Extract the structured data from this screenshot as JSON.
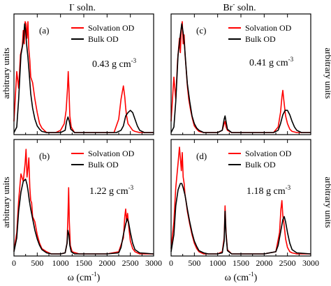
{
  "figure": {
    "col_titles": [
      {
        "main": "I",
        "sup": "-",
        "rest": " soln."
      },
      {
        "main": "Br",
        "sup": "-",
        "rest": " soln."
      }
    ],
    "ylabel": "arbitrary units",
    "xlabel": {
      "main": "ω (cm",
      "sup": "-1",
      "close": ")"
    }
  },
  "chart_data": [
    {
      "type": "line",
      "panel": "(a)",
      "annotation": {
        "value": "0.43 g cm",
        "sup": "-3"
      },
      "xlim": [
        0,
        3000
      ],
      "ylim": [
        0,
        1
      ],
      "xticks": [
        0,
        500,
        1000,
        1500,
        2000,
        2500,
        3000
      ],
      "series": [
        {
          "name": "Solvation OD",
          "color": "#ff0000",
          "x": [
            0,
            60,
            100,
            140,
            180,
            200,
            220,
            240,
            260,
            280,
            300,
            320,
            340,
            360,
            400,
            450,
            500,
            550,
            600,
            650,
            700,
            800,
            900,
            1000,
            1080,
            1120,
            1150,
            1165,
            1180,
            1200,
            1230,
            1300,
            1500,
            1800,
            2000,
            2150,
            2250,
            2300,
            2350,
            2380,
            2400,
            2420,
            2450,
            2500,
            2550,
            2600,
            2700,
            3000
          ],
          "y": [
            0.1,
            0.55,
            0.4,
            0.7,
            0.78,
            0.92,
            0.8,
            1.0,
            0.98,
            0.85,
            1.0,
            0.75,
            0.65,
            0.5,
            0.45,
            0.3,
            0.18,
            0.08,
            0.04,
            0.02,
            0.0,
            0.0,
            0.0,
            0.02,
            0.08,
            0.2,
            0.4,
            0.55,
            0.4,
            0.15,
            0.05,
            0.0,
            0.0,
            0.0,
            0.0,
            0.0,
            0.12,
            0.3,
            0.42,
            0.32,
            0.22,
            0.15,
            0.08,
            0.05,
            0.02,
            0.01,
            0.0,
            0.0
          ]
        },
        {
          "name": "Bulk OD",
          "color": "#000000",
          "x": [
            0,
            60,
            100,
            150,
            200,
            230,
            250,
            270,
            300,
            330,
            360,
            400,
            450,
            500,
            550,
            600,
            700,
            800,
            1000,
            1100,
            1130,
            1160,
            1190,
            1220,
            1300,
            1500,
            2000,
            2200,
            2300,
            2350,
            2400,
            2450,
            2500,
            2550,
            2600,
            2650,
            2700,
            2800,
            3000
          ],
          "y": [
            0.0,
            0.05,
            0.3,
            0.7,
            0.82,
            0.98,
            0.92,
            0.8,
            0.68,
            0.52,
            0.35,
            0.22,
            0.12,
            0.06,
            0.03,
            0.01,
            0.0,
            0.0,
            0.0,
            0.02,
            0.1,
            0.14,
            0.1,
            0.03,
            0.0,
            0.0,
            0.0,
            0.0,
            0.02,
            0.06,
            0.15,
            0.18,
            0.2,
            0.18,
            0.12,
            0.06,
            0.02,
            0.0,
            0.0
          ]
        }
      ]
    },
    {
      "type": "line",
      "panel": "(b)",
      "annotation": {
        "value": "1.22 g cm",
        "sup": "-3"
      },
      "xlim": [
        0,
        3000
      ],
      "ylim": [
        0,
        1
      ],
      "xticks": [
        0,
        500,
        1000,
        1500,
        2000,
        2500,
        3000
      ],
      "xticklabels": [
        "0",
        "500",
        "1000",
        "1500",
        "2000",
        "2500",
        "3000"
      ],
      "series": [
        {
          "name": "Solvation OD",
          "color": "#ff0000",
          "x": [
            0,
            60,
            100,
            150,
            200,
            240,
            260,
            280,
            300,
            320,
            340,
            360,
            380,
            400,
            450,
            500,
            550,
            600,
            700,
            800,
            1000,
            1100,
            1140,
            1160,
            1175,
            1190,
            1210,
            1250,
            1400,
            2000,
            2250,
            2350,
            2380,
            2400,
            2420,
            2440,
            2460,
            2480,
            2500,
            2550,
            2600,
            2700,
            3000
          ],
          "y": [
            0.03,
            0.2,
            0.5,
            0.75,
            0.68,
            0.85,
            0.98,
            0.72,
            0.8,
            0.9,
            0.62,
            0.5,
            0.48,
            0.35,
            0.3,
            0.18,
            0.1,
            0.05,
            0.02,
            0.0,
            0.0,
            0.01,
            0.1,
            0.35,
            0.62,
            0.3,
            0.08,
            0.02,
            0.0,
            0.0,
            0.02,
            0.15,
            0.35,
            0.42,
            0.3,
            0.38,
            0.28,
            0.2,
            0.12,
            0.05,
            0.02,
            0.0,
            0.0
          ]
        },
        {
          "name": "Bulk OD",
          "color": "#000000",
          "x": [
            0,
            60,
            100,
            150,
            200,
            250,
            280,
            300,
            330,
            360,
            400,
            450,
            500,
            550,
            600,
            700,
            800,
            1000,
            1100,
            1140,
            1160,
            1180,
            1200,
            1230,
            1300,
            2000,
            2250,
            2300,
            2350,
            2400,
            2430,
            2460,
            2500,
            2550,
            2600,
            2700,
            3000
          ],
          "y": [
            0.02,
            0.15,
            0.4,
            0.58,
            0.68,
            0.7,
            0.65,
            0.6,
            0.5,
            0.42,
            0.33,
            0.22,
            0.14,
            0.08,
            0.04,
            0.01,
            0.0,
            0.0,
            0.01,
            0.1,
            0.22,
            0.18,
            0.08,
            0.02,
            0.0,
            0.0,
            0.01,
            0.06,
            0.18,
            0.28,
            0.33,
            0.3,
            0.2,
            0.1,
            0.04,
            0.01,
            0.0
          ]
        }
      ]
    },
    {
      "type": "line",
      "panel": "(c)",
      "annotation": {
        "value": "0.41 g cm",
        "sup": "-3"
      },
      "xlim": [
        0,
        3000
      ],
      "ylim": [
        0,
        1
      ],
      "xticks": [
        0,
        500,
        1000,
        1500,
        2000,
        2500,
        3000
      ],
      "series": [
        {
          "name": "Solvation OD",
          "color": "#ff0000",
          "x": [
            0,
            60,
            100,
            140,
            180,
            200,
            220,
            240,
            260,
            280,
            300,
            320,
            350,
            380,
            420,
            460,
            500,
            550,
            600,
            700,
            800,
            1000,
            1100,
            1140,
            1160,
            1180,
            1210,
            1300,
            2000,
            2200,
            2300,
            2350,
            2380,
            2400,
            2420,
            2440,
            2460,
            2500,
            2550,
            2600,
            2700,
            3000
          ],
          "y": [
            0.1,
            0.5,
            0.3,
            0.65,
            0.85,
            0.72,
            0.95,
            1.0,
            0.8,
            0.88,
            0.7,
            0.6,
            0.42,
            0.3,
            0.2,
            0.12,
            0.06,
            0.03,
            0.01,
            0.0,
            0.0,
            0.0,
            0.02,
            0.08,
            0.1,
            0.05,
            0.02,
            0.0,
            0.0,
            0.0,
            0.05,
            0.18,
            0.32,
            0.38,
            0.3,
            0.22,
            0.15,
            0.08,
            0.03,
            0.01,
            0.0,
            0.0
          ]
        },
        {
          "name": "Bulk OD",
          "color": "#000000",
          "x": [
            0,
            60,
            100,
            150,
            200,
            230,
            260,
            290,
            320,
            350,
            400,
            450,
            500,
            550,
            600,
            700,
            800,
            1000,
            1100,
            1140,
            1160,
            1180,
            1210,
            1300,
            2000,
            2200,
            2300,
            2350,
            2400,
            2450,
            2500,
            2550,
            2600,
            2650,
            2700,
            2800,
            3000
          ],
          "y": [
            0.0,
            0.05,
            0.28,
            0.7,
            0.88,
            0.98,
            0.9,
            0.78,
            0.6,
            0.44,
            0.28,
            0.15,
            0.08,
            0.04,
            0.02,
            0.0,
            0.0,
            0.0,
            0.02,
            0.12,
            0.15,
            0.1,
            0.03,
            0.0,
            0.0,
            0.0,
            0.02,
            0.08,
            0.16,
            0.2,
            0.2,
            0.16,
            0.1,
            0.05,
            0.02,
            0.0,
            0.0
          ]
        }
      ]
    },
    {
      "type": "line",
      "panel": "(d)",
      "annotation": {
        "value": "1.18 g cm",
        "sup": "-3"
      },
      "xlim": [
        0,
        3000
      ],
      "ylim": [
        0,
        1
      ],
      "xticks": [
        0,
        500,
        1000,
        1500,
        2000,
        2500,
        3000
      ],
      "xticklabels": [
        "0",
        "500",
        "1000",
        "1500",
        "2000",
        "2500",
        "3000"
      ],
      "series": [
        {
          "name": "Solvation OD",
          "color": "#ff0000",
          "x": [
            0,
            60,
            100,
            150,
            180,
            200,
            220,
            240,
            260,
            280,
            300,
            320,
            350,
            400,
            450,
            500,
            550,
            600,
            700,
            800,
            1000,
            1100,
            1140,
            1160,
            1180,
            1210,
            1300,
            2000,
            2250,
            2330,
            2360,
            2380,
            2400,
            2420,
            2440,
            2460,
            2500,
            2550,
            2600,
            2700,
            3000
          ],
          "y": [
            0.05,
            0.3,
            0.62,
            0.85,
            1.0,
            0.9,
            0.78,
            0.95,
            0.72,
            0.66,
            0.55,
            0.5,
            0.4,
            0.28,
            0.18,
            0.1,
            0.05,
            0.02,
            0.0,
            0.0,
            0.0,
            0.02,
            0.15,
            0.45,
            0.2,
            0.04,
            0.0,
            0.0,
            0.02,
            0.2,
            0.42,
            0.5,
            0.36,
            0.3,
            0.22,
            0.14,
            0.06,
            0.02,
            0.01,
            0.0,
            0.0
          ]
        },
        {
          "name": "Bulk OD",
          "color": "#000000",
          "x": [
            0,
            60,
            100,
            150,
            200,
            230,
            260,
            300,
            350,
            400,
            450,
            500,
            550,
            600,
            700,
            800,
            1000,
            1100,
            1140,
            1160,
            1180,
            1210,
            1300,
            2000,
            2250,
            2300,
            2350,
            2400,
            2430,
            2460,
            2500,
            2550,
            2600,
            2700,
            3000
          ],
          "y": [
            0.02,
            0.18,
            0.45,
            0.6,
            0.66,
            0.66,
            0.62,
            0.55,
            0.42,
            0.3,
            0.2,
            0.12,
            0.07,
            0.03,
            0.01,
            0.0,
            0.0,
            0.01,
            0.12,
            0.4,
            0.18,
            0.03,
            0.0,
            0.0,
            0.02,
            0.08,
            0.2,
            0.32,
            0.35,
            0.3,
            0.2,
            0.1,
            0.04,
            0.01,
            0.0
          ]
        }
      ]
    }
  ]
}
